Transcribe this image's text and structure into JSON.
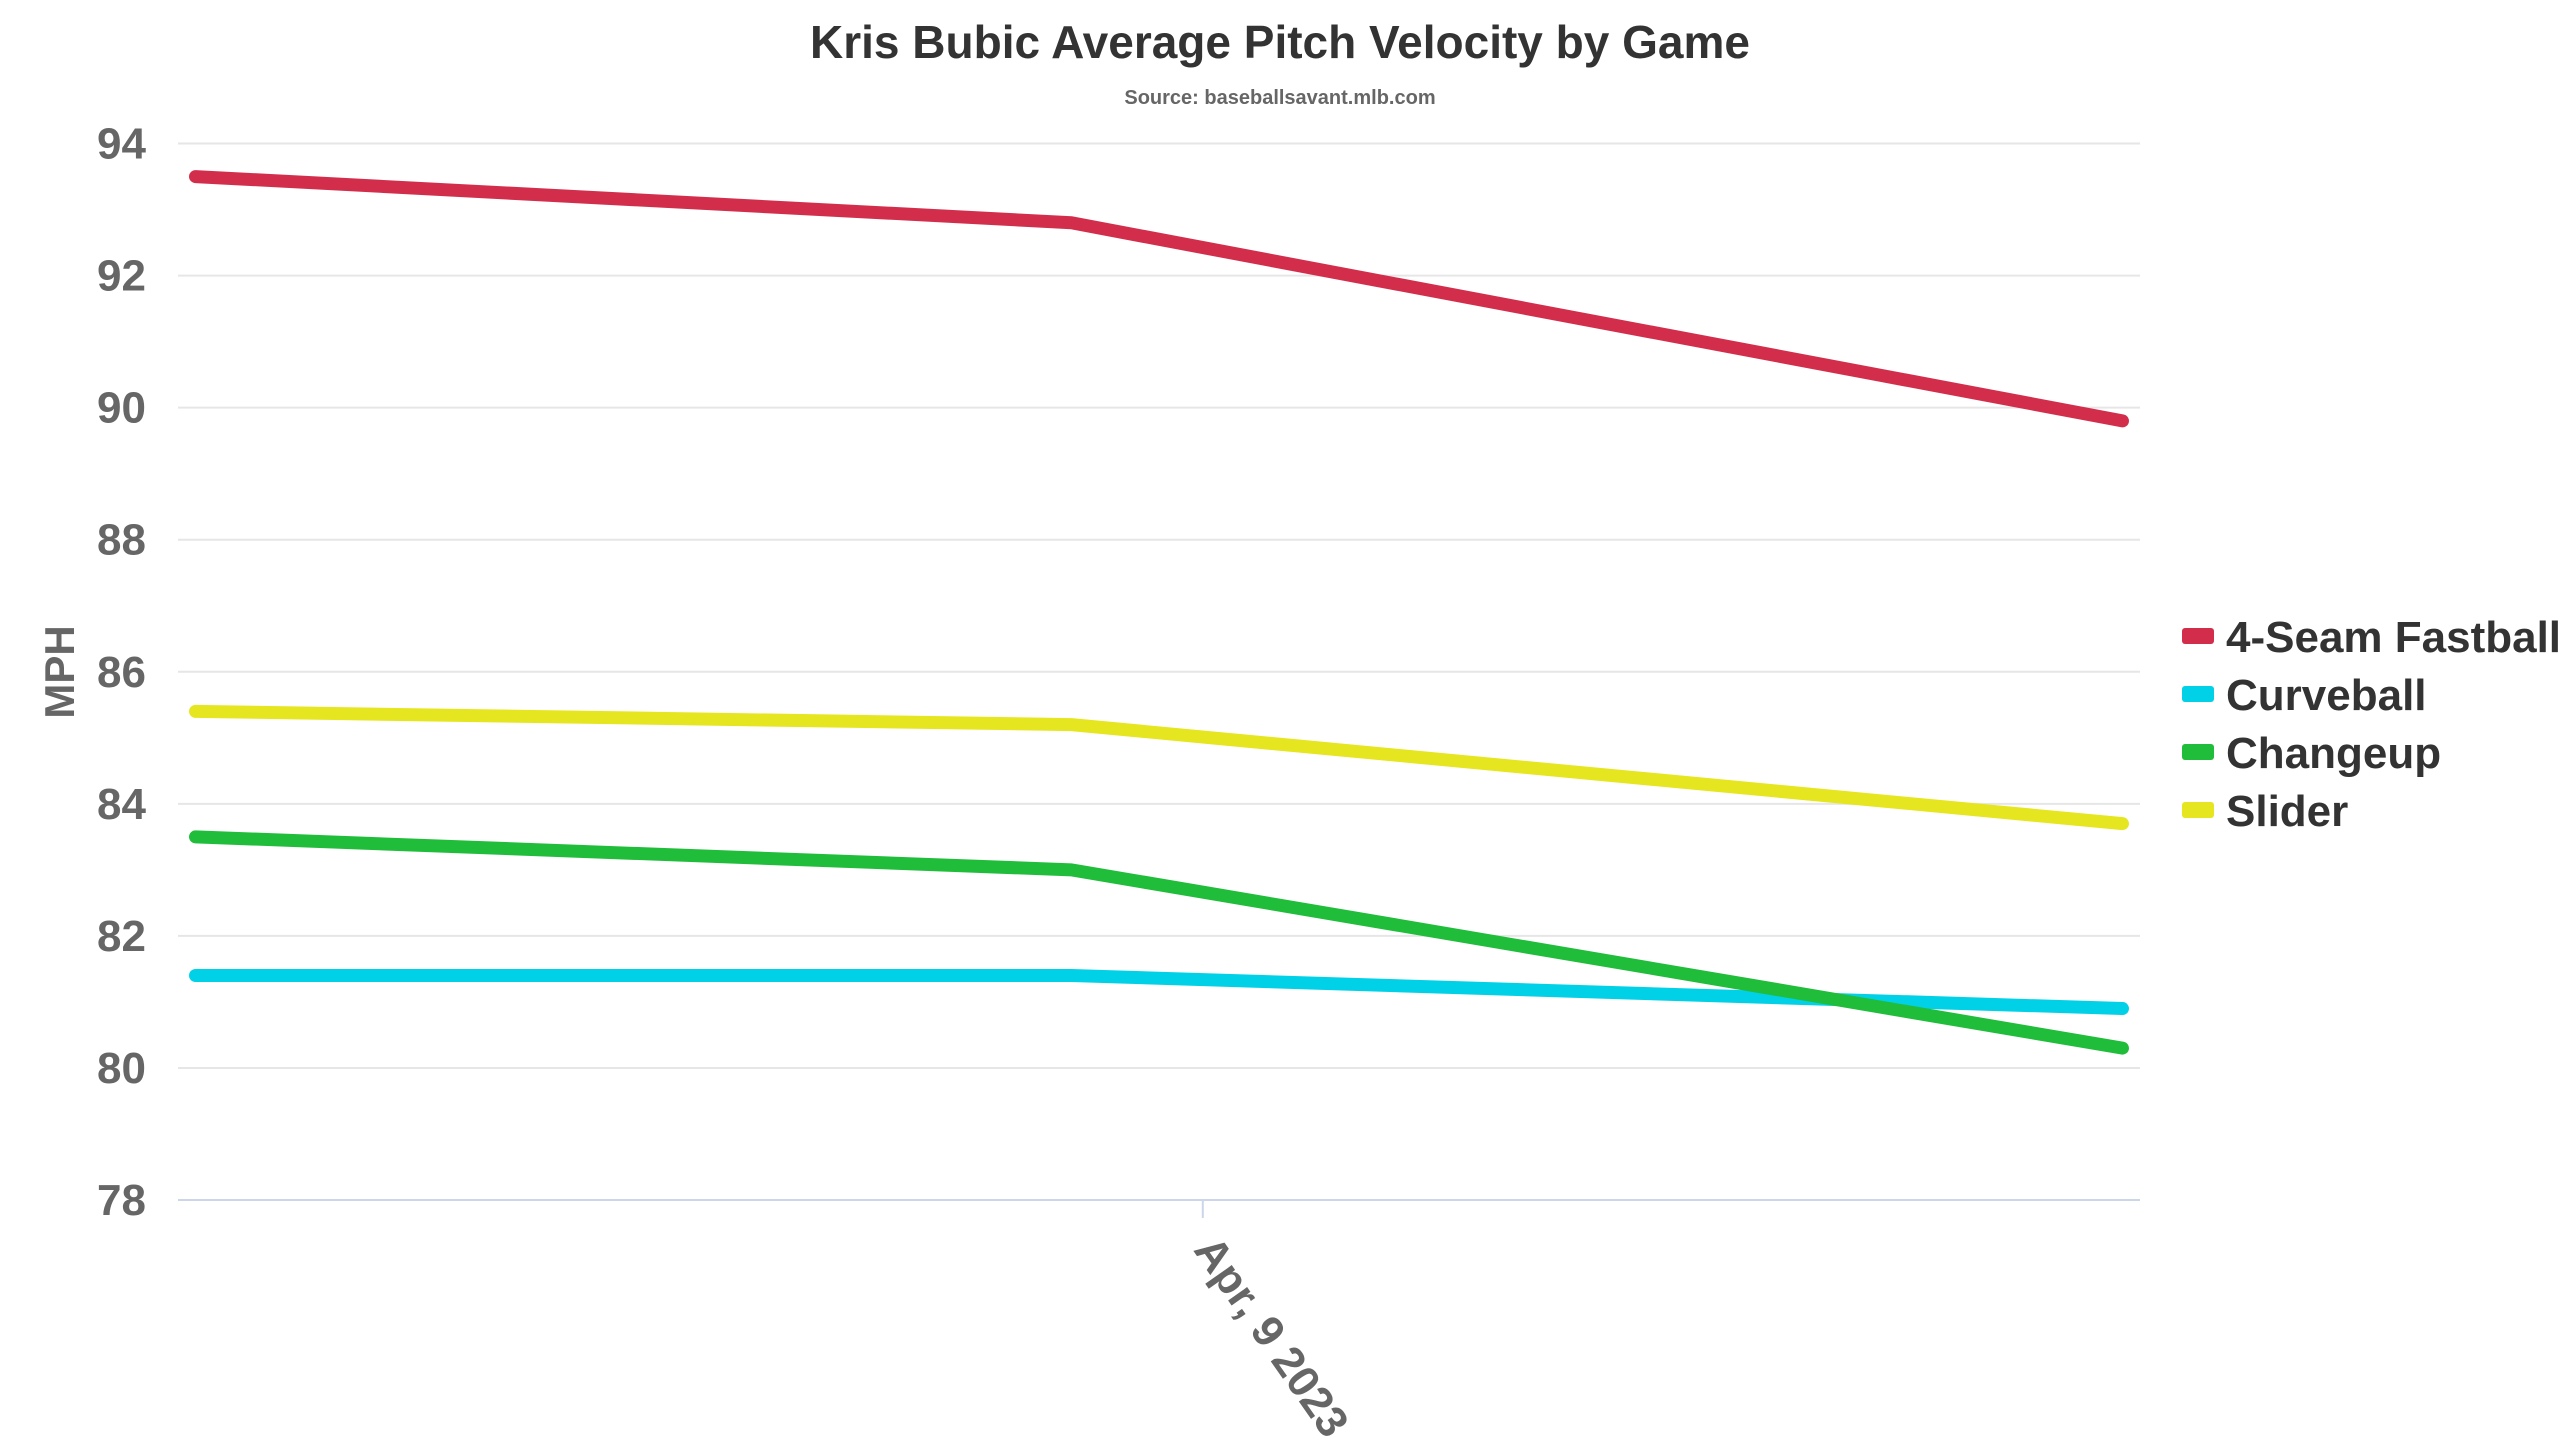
{
  "chart_data": {
    "type": "line",
    "title": "Kris Bubic Average Pitch Velocity by Game",
    "subtitle": "Source: baseballsavant.mlb.com",
    "xlabel": "",
    "ylabel": "MPH",
    "x_tick_labels": [
      "Apr, 9 2023"
    ],
    "x_tick_index": 1.15,
    "x": [
      0,
      1,
      2.2
    ],
    "xlim": [
      -0.02,
      2.22
    ],
    "ylim": [
      78,
      94
    ],
    "yticks": [
      78,
      80,
      82,
      84,
      86,
      88,
      90,
      92,
      94
    ],
    "grid": true,
    "legend_position": "right",
    "series": [
      {
        "name": "4-Seam Fastball",
        "color": "#d22e4b",
        "values": [
          93.5,
          92.8,
          89.8
        ]
      },
      {
        "name": "Curveball",
        "color": "#00d1e6",
        "values": [
          81.4,
          81.4,
          80.9
        ]
      },
      {
        "name": "Changeup",
        "color": "#1fbd3a",
        "values": [
          83.5,
          83.0,
          80.3
        ]
      },
      {
        "name": "Slider",
        "color": "#e6e620",
        "values": [
          85.4,
          85.2,
          83.7
        ]
      }
    ]
  }
}
